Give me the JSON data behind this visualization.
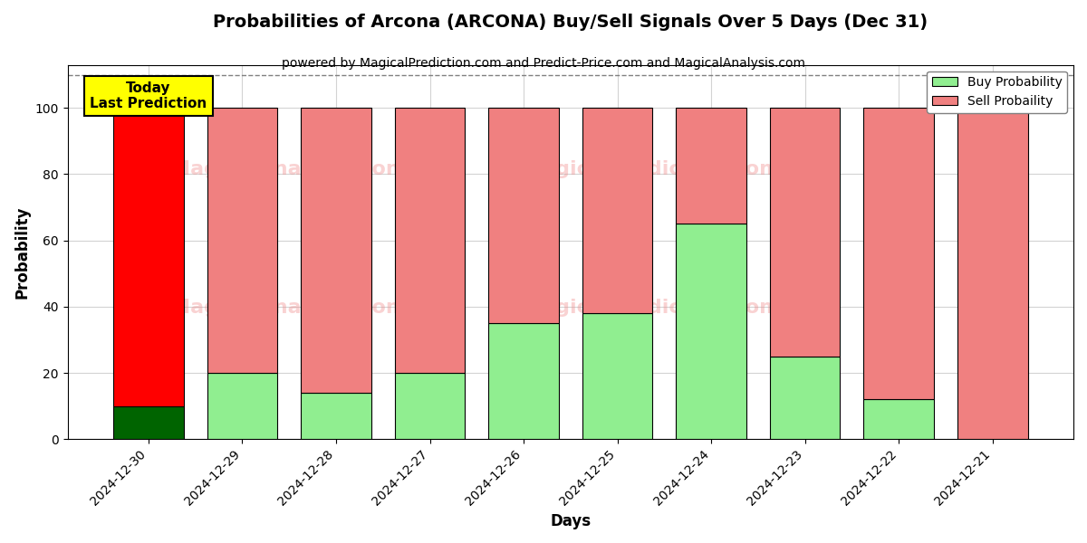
{
  "title": "Probabilities of Arcona (ARCONA) Buy/Sell Signals Over 5 Days (Dec 31)",
  "subtitle": "powered by MagicalPrediction.com and Predict-Price.com and MagicalAnalysis.com",
  "xlabel": "Days",
  "ylabel": "Probability",
  "categories": [
    "2024-12-30",
    "2024-12-29",
    "2024-12-28",
    "2024-12-27",
    "2024-12-26",
    "2024-12-25",
    "2024-12-24",
    "2024-12-23",
    "2024-12-22",
    "2024-12-21"
  ],
  "buy_values": [
    10,
    20,
    14,
    20,
    35,
    38,
    65,
    25,
    12,
    0
  ],
  "sell_values": [
    90,
    80,
    86,
    80,
    65,
    62,
    35,
    75,
    88,
    100
  ],
  "buy_color_first": "#006400",
  "buy_color_rest": "#90EE90",
  "sell_color_first": "#FF0000",
  "sell_color_rest": "#F08080",
  "ylim_max": 113,
  "yticks": [
    0,
    20,
    40,
    60,
    80,
    100
  ],
  "dashed_line_y": 110,
  "annotation_text": "Today\nLast Prediction",
  "annotation_bg": "#FFFF00",
  "legend_buy_label": "Buy Probability",
  "legend_sell_label": "Sell Probaility",
  "watermark_color": "#F08080",
  "watermark_alpha": 0.35,
  "bar_width": 0.75
}
